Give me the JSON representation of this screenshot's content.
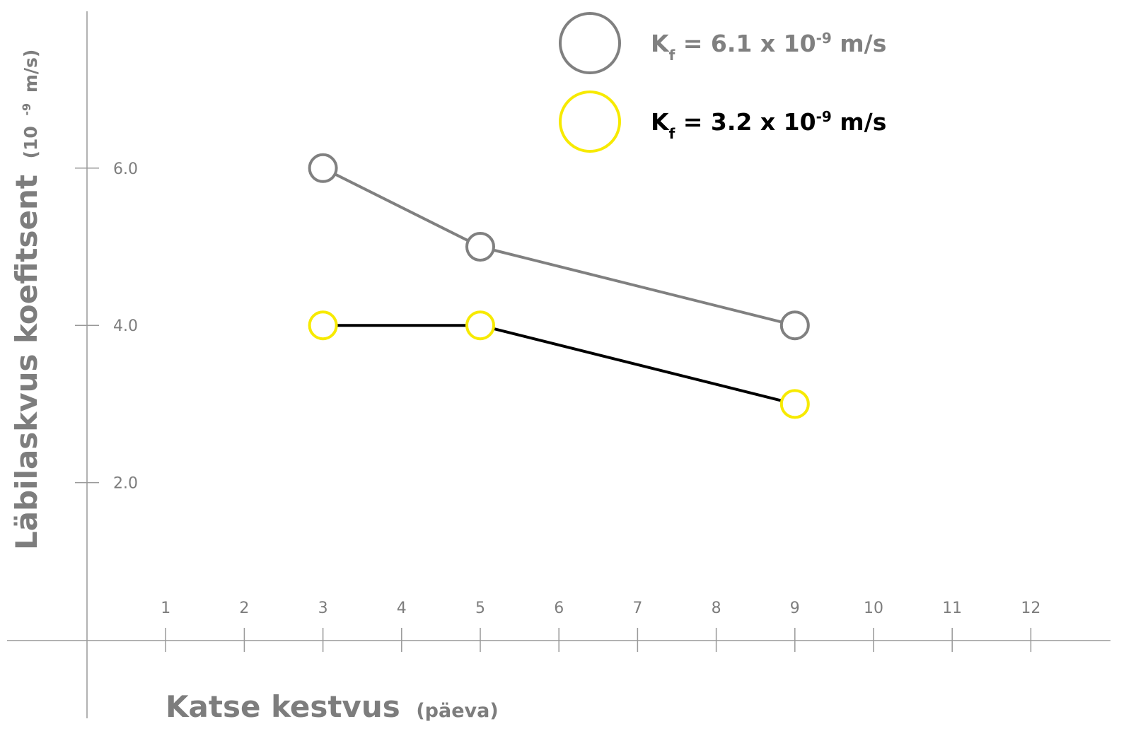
{
  "chart_data": {
    "type": "line",
    "xlabel": "Katse kestvus",
    "xlabel_unit": "(päeva)",
    "ylabel": "Läbilaskvus koefitsent",
    "ylabel_unit_prefix": "(10",
    "ylabel_unit_exp": "-9",
    "ylabel_unit_suffix": " m/s)",
    "x_ticks": [
      "1",
      "2",
      "3",
      "4",
      "5",
      "6",
      "7",
      "8",
      "9",
      "10",
      "11",
      "12"
    ],
    "y_ticks": [
      "2.0",
      "4.0",
      "6.0"
    ],
    "xlim": [
      0,
      13
    ],
    "ylim": [
      0,
      8
    ],
    "grid": false,
    "legend_position": "top-right",
    "series": [
      {
        "name_prefix": "K",
        "name_sub": "f",
        "name_mid": " = 6.1 x 10",
        "name_exp": "-9",
        "name_suffix": " m/s",
        "line_color": "#808080",
        "marker_color": "#808080",
        "text_color": "#808080",
        "x": [
          3,
          5,
          9
        ],
        "y": [
          6.0,
          5.0,
          4.0
        ]
      },
      {
        "name_prefix": "K",
        "name_sub": "f",
        "name_mid": " = 3.2 x 10",
        "name_exp": "-9",
        "name_suffix": " m/s",
        "line_color": "#000000",
        "marker_color": "#f7ea00",
        "text_color": "#000000",
        "x": [
          3,
          5,
          9
        ],
        "y": [
          4.0,
          4.0,
          3.0
        ]
      }
    ]
  }
}
